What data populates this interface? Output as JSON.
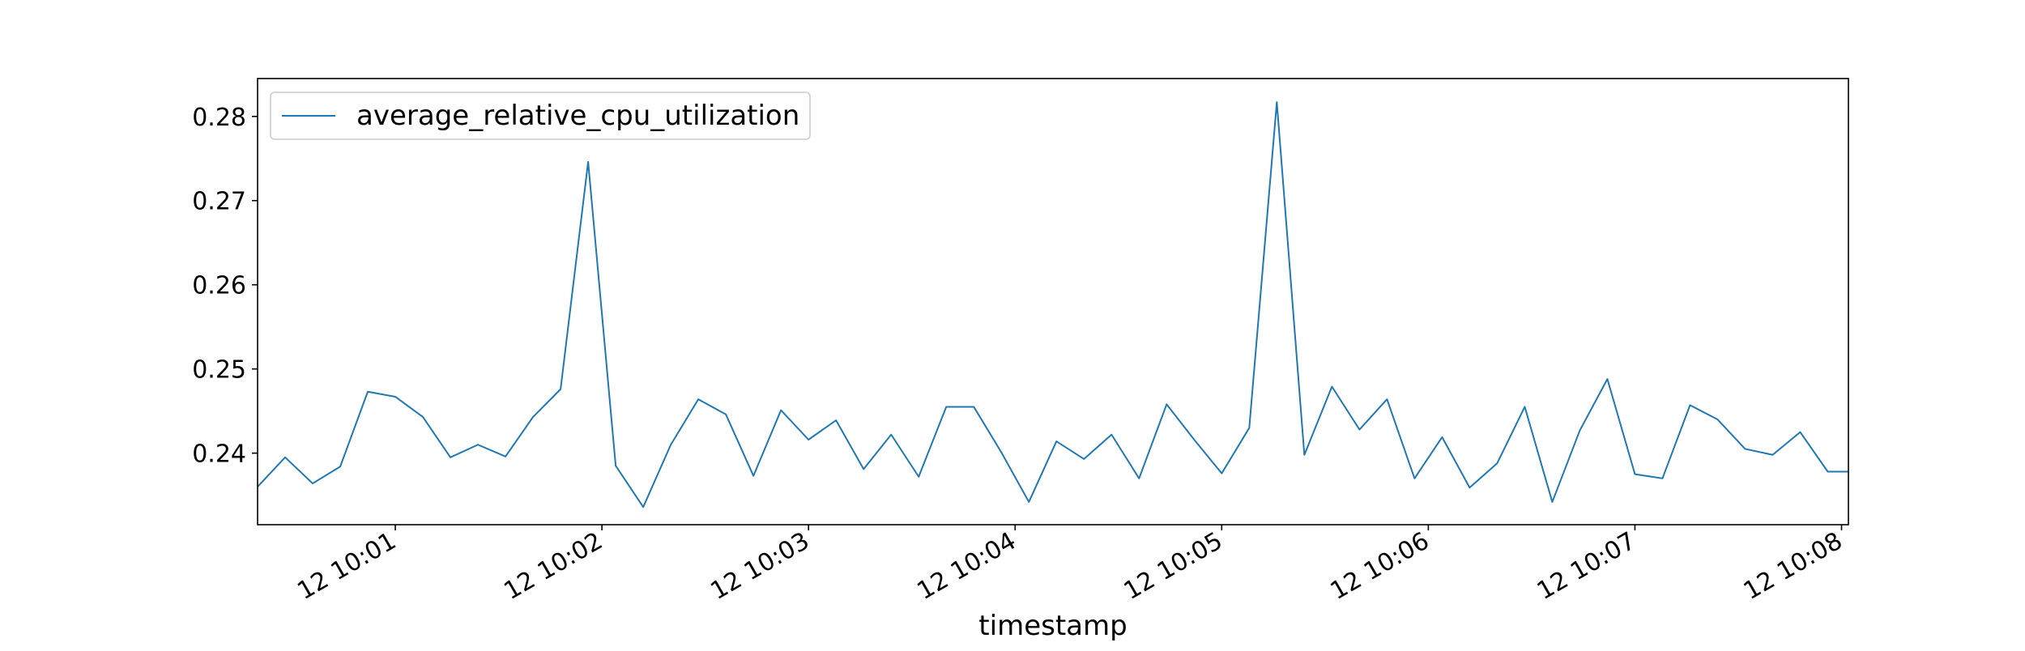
{
  "chart_data": {
    "type": "line",
    "title": "",
    "xlabel": "timestamp",
    "ylabel": "",
    "ylim": [
      0.2315,
      0.2845
    ],
    "y_ticks": [
      0.24,
      0.25,
      0.26,
      0.27,
      0.28
    ],
    "y_tick_labels": [
      "0.24",
      "0.25",
      "0.26",
      "0.27",
      "0.28"
    ],
    "x_ticks": [
      "10:01",
      "10:02",
      "10:03",
      "10:04",
      "10:05",
      "10:06",
      "10:07",
      "10:08"
    ],
    "x_tick_labels": [
      "12 10:01",
      "12 10:02",
      "12 10:03",
      "12 10:04",
      "12 10:05",
      "12 10:06",
      "12 10:07",
      "12 10:08"
    ],
    "xlim": [
      "10:00:20",
      "10:08:02"
    ],
    "legend_position": "top-left",
    "grid": false,
    "series": [
      {
        "name": "average_relative_cpu_utilization",
        "color": "#1f77b4",
        "x": [
          "10:00:20",
          "10:00:28",
          "10:00:36",
          "10:00:44",
          "10:00:52",
          "10:01:00",
          "10:01:08",
          "10:01:16",
          "10:01:24",
          "10:01:32",
          "10:01:40",
          "10:01:48",
          "10:01:56",
          "10:02:04",
          "10:02:12",
          "10:02:20",
          "10:02:28",
          "10:02:36",
          "10:02:44",
          "10:02:52",
          "10:03:00",
          "10:03:08",
          "10:03:16",
          "10:03:24",
          "10:03:32",
          "10:03:40",
          "10:03:48",
          "10:03:56",
          "10:04:04",
          "10:04:12",
          "10:04:20",
          "10:04:28",
          "10:04:36",
          "10:04:44",
          "10:04:52",
          "10:05:00",
          "10:05:08",
          "10:05:16",
          "10:05:24",
          "10:05:32",
          "10:05:40",
          "10:05:48",
          "10:05:56",
          "10:06:04",
          "10:06:12",
          "10:06:20",
          "10:06:28",
          "10:06:36",
          "10:06:44",
          "10:06:52",
          "10:07:00",
          "10:07:08",
          "10:07:16",
          "10:07:24",
          "10:07:32",
          "10:07:40",
          "10:07:48",
          "10:07:56",
          "10:08:02"
        ],
        "values": [
          0.236,
          0.2395,
          0.2364,
          0.2384,
          0.2473,
          0.2467,
          0.2443,
          0.2395,
          0.241,
          0.2396,
          0.2443,
          0.2476,
          0.2746,
          0.2385,
          0.2336,
          0.241,
          0.2464,
          0.2446,
          0.2373,
          0.2451,
          0.2416,
          0.2439,
          0.2381,
          0.2422,
          0.2372,
          0.2455,
          0.2455,
          0.2401,
          0.2342,
          0.2414,
          0.2393,
          0.2422,
          0.237,
          0.2458,
          0.2416,
          0.2376,
          0.243,
          0.2817,
          0.2398,
          0.2479,
          0.2428,
          0.2464,
          0.237,
          0.2419,
          0.2359,
          0.2388,
          0.2455,
          0.2342,
          0.2427,
          0.2488,
          0.2375,
          0.237,
          0.2457,
          0.244,
          0.2405,
          0.2398,
          0.2425,
          0.2378,
          0.2378
        ]
      }
    ]
  }
}
